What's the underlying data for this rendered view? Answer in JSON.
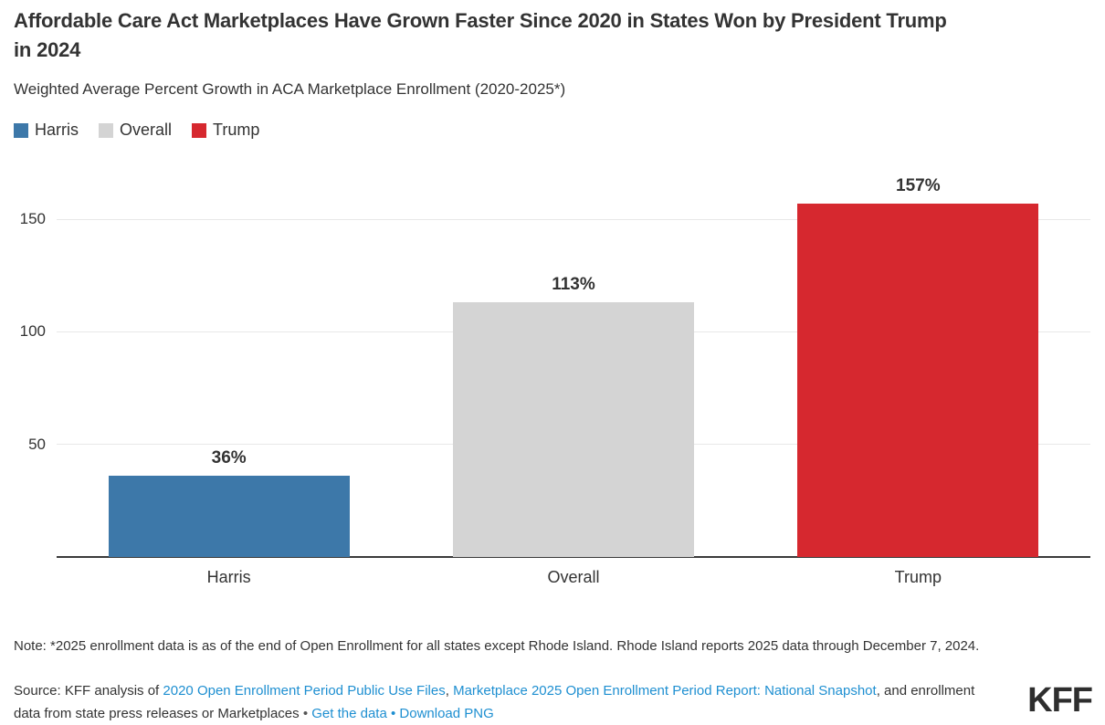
{
  "header": {
    "title": "Affordable Care Act Marketplaces Have Grown Faster Since 2020 in States Won by President Trump in 2024",
    "subtitle": "Weighted Average Percent Growth in ACA Marketplace Enrollment (2020-2025*)"
  },
  "legend": {
    "items": [
      {
        "label": "Harris",
        "color": "#3d78a9"
      },
      {
        "label": "Overall",
        "color": "#d4d4d4"
      },
      {
        "label": "Trump",
        "color": "#d6282f"
      }
    ]
  },
  "chart_data": {
    "type": "bar",
    "categories": [
      "Harris",
      "Overall",
      "Trump"
    ],
    "values": [
      36,
      113,
      157
    ],
    "value_labels": [
      "36%",
      "113%",
      "157%"
    ],
    "bar_colors": [
      "#3d78a9",
      "#d4d4d4",
      "#d6282f"
    ],
    "title": "Affordable Care Act Marketplaces Have Grown Faster Since 2020 in States Won by President Trump in 2024",
    "subtitle": "Weighted Average Percent Growth in ACA Marketplace Enrollment (2020-2025*)",
    "xlabel": "",
    "ylabel": "",
    "yticks": [
      50,
      100,
      150
    ],
    "ylim": [
      0,
      166
    ],
    "grid": true,
    "legend_position": "top",
    "legend_entries": [
      "Harris",
      "Overall",
      "Trump"
    ]
  },
  "footer": {
    "note": "Note: *2025 enrollment data is as of the end of Open Enrollment for all states except Rhode Island. Rhode Island reports 2025 data through December 7, 2024.",
    "source_segments": [
      {
        "text": "Source: KFF analysis of ",
        "type": "text"
      },
      {
        "text": "2020 Open Enrollment Period Public Use Files",
        "type": "link"
      },
      {
        "text": ", ",
        "type": "text"
      },
      {
        "text": "Marketplace 2025 Open Enrollment Period Report: National Snapshot",
        "type": "link"
      },
      {
        "text": ", and enrollment data from state press releases or Marketplaces ",
        "type": "text"
      },
      {
        "text": " • ",
        "type": "separator"
      },
      {
        "text": "Get the data",
        "type": "link"
      },
      {
        "text": " • ",
        "type": "separator_blue"
      },
      {
        "text": "Download PNG",
        "type": "link"
      }
    ],
    "logo": "KFF"
  },
  "colors": {
    "text": "#333333",
    "link": "#1e8fd1",
    "gridline": "#e8e8e8",
    "axis_line": "#3a3a3a",
    "harris_blue": "#3d78a9",
    "overall_gray": "#d4d4d4",
    "trump_red": "#d6282f"
  }
}
